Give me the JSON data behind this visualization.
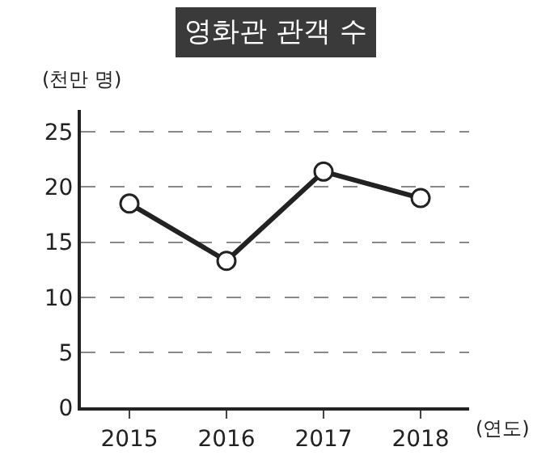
{
  "chart_data": {
    "type": "line",
    "title": "영화관 관객 수",
    "ylabel": "(천만 명)",
    "xlabel": "(연도)",
    "categories": [
      "2015",
      "2016",
      "2017",
      "2018"
    ],
    "series": [
      {
        "color": "#222222",
        "values": [
          18.5,
          13.3,
          21.4,
          19.0
        ]
      }
    ],
    "ylim": [
      0,
      27
    ],
    "yticks": [
      0,
      5,
      10,
      15,
      20,
      25
    ],
    "grid": "y",
    "marker": "circle",
    "line_style": "solid",
    "legend": false
  }
}
